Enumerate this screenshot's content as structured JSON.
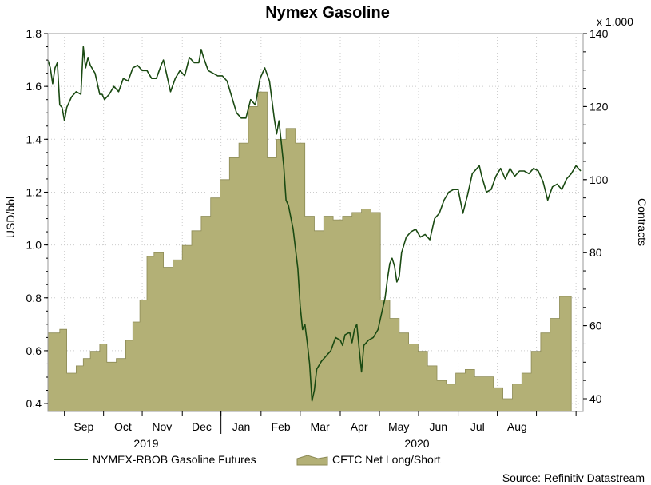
{
  "chart_data": {
    "type": "area-line-combo",
    "title": "Nymex Gasoline",
    "x_labels": [
      "Sep",
      "Oct",
      "Nov",
      "Dec",
      "Jan",
      "Feb",
      "Mar",
      "Apr",
      "May",
      "Jun",
      "Jul",
      "Aug"
    ],
    "year_labels": [
      "2019",
      "2020"
    ],
    "left_axis": {
      "label": "USD/bbl",
      "range": [
        0.37,
        1.8
      ],
      "ticks": [
        "1.8",
        "1.6",
        "1.4",
        "1.2",
        "1.0",
        "0.8",
        "0.6",
        "0.4"
      ]
    },
    "right_axis": {
      "label": "Contracts",
      "multiplier_label": "x 1,000",
      "range": [
        36.5,
        140
      ],
      "ticks": [
        "140",
        "120",
        "100",
        "80",
        "60",
        "40"
      ]
    },
    "grid": true,
    "legend": "bottom",
    "series": [
      {
        "name": "NYMEX-RBOB Gasoline Futures",
        "axis": "left",
        "kind": "line",
        "color": "#1a4a12",
        "points": [
          [
            2019.63,
            1.7
          ],
          [
            2019.635,
            1.67
          ],
          [
            2019.64,
            1.61
          ],
          [
            2019.645,
            1.67
          ],
          [
            2019.65,
            1.69
          ],
          [
            2019.655,
            1.53
          ],
          [
            2019.66,
            1.52
          ],
          [
            2019.665,
            1.47
          ],
          [
            2019.67,
            1.52
          ],
          [
            2019.68,
            1.56
          ],
          [
            2019.69,
            1.58
          ],
          [
            2019.7,
            1.57
          ],
          [
            2019.705,
            1.75
          ],
          [
            2019.71,
            1.67
          ],
          [
            2019.715,
            1.71
          ],
          [
            2019.72,
            1.68
          ],
          [
            2019.73,
            1.65
          ],
          [
            2019.735,
            1.61
          ],
          [
            2019.74,
            1.57
          ],
          [
            2019.745,
            1.57
          ],
          [
            2019.75,
            1.55
          ],
          [
            2019.76,
            1.57
          ],
          [
            2019.77,
            1.6
          ],
          [
            2019.78,
            1.58
          ],
          [
            2019.79,
            1.63
          ],
          [
            2019.8,
            1.62
          ],
          [
            2019.81,
            1.67
          ],
          [
            2019.82,
            1.68
          ],
          [
            2019.83,
            1.66
          ],
          [
            2019.84,
            1.66
          ],
          [
            2019.85,
            1.63
          ],
          [
            2019.86,
            1.63
          ],
          [
            2019.87,
            1.68
          ],
          [
            2019.875,
            1.7
          ],
          [
            2019.88,
            1.66
          ],
          [
            2019.89,
            1.58
          ],
          [
            2019.9,
            1.63
          ],
          [
            2019.91,
            1.66
          ],
          [
            2019.92,
            1.64
          ],
          [
            2019.93,
            1.71
          ],
          [
            2019.94,
            1.69
          ],
          [
            2019.95,
            1.69
          ],
          [
            2019.955,
            1.74
          ],
          [
            2019.96,
            1.71
          ],
          [
            2019.97,
            1.66
          ],
          [
            2019.98,
            1.65
          ],
          [
            2019.99,
            1.64
          ],
          [
            2020.0,
            1.64
          ],
          [
            2020.01,
            1.62
          ],
          [
            2020.02,
            1.56
          ],
          [
            2020.03,
            1.5
          ],
          [
            2020.04,
            1.48
          ],
          [
            2020.05,
            1.48
          ],
          [
            2020.06,
            1.55
          ],
          [
            2020.07,
            1.53
          ],
          [
            2020.08,
            1.63
          ],
          [
            2020.09,
            1.67
          ],
          [
            2020.1,
            1.62
          ],
          [
            2020.11,
            1.48
          ],
          [
            2020.115,
            1.42
          ],
          [
            2020.12,
            1.47
          ],
          [
            2020.13,
            1.3
          ],
          [
            2020.135,
            1.17
          ],
          [
            2020.14,
            1.15
          ],
          [
            2020.15,
            1.06
          ],
          [
            2020.16,
            0.91
          ],
          [
            2020.165,
            0.77
          ],
          [
            2020.17,
            0.68
          ],
          [
            2020.175,
            0.7
          ],
          [
            2020.18,
            0.63
          ],
          [
            2020.185,
            0.55
          ],
          [
            2020.19,
            0.41
          ],
          [
            2020.195,
            0.45
          ],
          [
            2020.2,
            0.53
          ],
          [
            2020.21,
            0.56
          ],
          [
            2020.22,
            0.58
          ],
          [
            2020.225,
            0.59
          ],
          [
            2020.23,
            0.6
          ],
          [
            2020.24,
            0.65
          ],
          [
            2020.25,
            0.64
          ],
          [
            2020.255,
            0.62
          ],
          [
            2020.26,
            0.66
          ],
          [
            2020.27,
            0.67
          ],
          [
            2020.275,
            0.63
          ],
          [
            2020.28,
            0.68
          ],
          [
            2020.285,
            0.7
          ],
          [
            2020.29,
            0.61
          ],
          [
            2020.295,
            0.52
          ],
          [
            2020.3,
            0.62
          ],
          [
            2020.31,
            0.64
          ],
          [
            2020.32,
            0.65
          ],
          [
            2020.33,
            0.68
          ],
          [
            2020.34,
            0.76
          ],
          [
            2020.345,
            0.8
          ],
          [
            2020.35,
            0.87
          ],
          [
            2020.355,
            0.93
          ],
          [
            2020.36,
            0.95
          ],
          [
            2020.365,
            0.92
          ],
          [
            2020.37,
            0.86
          ],
          [
            2020.375,
            0.88
          ],
          [
            2020.38,
            0.97
          ],
          [
            2020.39,
            1.03
          ],
          [
            2020.4,
            1.05
          ],
          [
            2020.41,
            1.06
          ],
          [
            2020.42,
            1.03
          ],
          [
            2020.43,
            1.04
          ],
          [
            2020.44,
            1.02
          ],
          [
            2020.45,
            1.1
          ],
          [
            2020.46,
            1.12
          ],
          [
            2020.47,
            1.17
          ],
          [
            2020.48,
            1.2
          ],
          [
            2020.49,
            1.21
          ],
          [
            2020.5,
            1.21
          ],
          [
            2020.51,
            1.12
          ],
          [
            2020.52,
            1.19
          ],
          [
            2020.53,
            1.27
          ],
          [
            2020.54,
            1.29
          ],
          [
            2020.545,
            1.3
          ],
          [
            2020.55,
            1.26
          ],
          [
            2020.56,
            1.2
          ],
          [
            2020.57,
            1.21
          ],
          [
            2020.58,
            1.26
          ],
          [
            2020.59,
            1.29
          ],
          [
            2020.6,
            1.25
          ],
          [
            2020.61,
            1.29
          ],
          [
            2020.62,
            1.26
          ],
          [
            2020.63,
            1.28
          ],
          [
            2020.64,
            1.28
          ],
          [
            2020.65,
            1.27
          ],
          [
            2020.66,
            1.29
          ],
          [
            2020.67,
            1.28
          ],
          [
            2020.68,
            1.24
          ],
          [
            2020.69,
            1.17
          ],
          [
            2020.7,
            1.22
          ],
          [
            2020.71,
            1.23
          ],
          [
            2020.72,
            1.21
          ],
          [
            2020.73,
            1.25
          ],
          [
            2020.74,
            1.27
          ],
          [
            2020.75,
            1.3
          ],
          [
            2020.76,
            1.28
          ]
        ]
      },
      {
        "name": "CFTC Net Long/Short",
        "axis": "right",
        "kind": "stepped-area",
        "color": "#b3b076",
        "points": [
          [
            2019.63,
            58
          ],
          [
            2019.655,
            59
          ],
          [
            2019.67,
            47
          ],
          [
            2019.69,
            49
          ],
          [
            2019.705,
            51
          ],
          [
            2019.72,
            53
          ],
          [
            2019.74,
            55
          ],
          [
            2019.755,
            50
          ],
          [
            2019.775,
            51
          ],
          [
            2019.795,
            56
          ],
          [
            2019.81,
            61
          ],
          [
            2019.825,
            67
          ],
          [
            2019.84,
            79
          ],
          [
            2019.855,
            80
          ],
          [
            2019.875,
            76
          ],
          [
            2019.895,
            78
          ],
          [
            2019.915,
            82
          ],
          [
            2019.935,
            86
          ],
          [
            2019.955,
            90
          ],
          [
            2019.975,
            95
          ],
          [
            2019.995,
            100
          ],
          [
            2020.015,
            106
          ],
          [
            2020.035,
            110
          ],
          [
            2020.055,
            120
          ],
          [
            2020.075,
            124
          ],
          [
            2020.095,
            106
          ],
          [
            2020.115,
            111
          ],
          [
            2020.135,
            114
          ],
          [
            2020.155,
            110
          ],
          [
            2020.175,
            90
          ],
          [
            2020.195,
            86
          ],
          [
            2020.215,
            90
          ],
          [
            2020.235,
            89
          ],
          [
            2020.255,
            90
          ],
          [
            2020.275,
            91
          ],
          [
            2020.295,
            92
          ],
          [
            2020.315,
            91
          ],
          [
            2020.335,
            67
          ],
          [
            2020.355,
            62
          ],
          [
            2020.375,
            58
          ],
          [
            2020.395,
            55
          ],
          [
            2020.415,
            53
          ],
          [
            2020.435,
            49
          ],
          [
            2020.455,
            45
          ],
          [
            2020.475,
            44
          ],
          [
            2020.495,
            47
          ],
          [
            2020.515,
            48
          ],
          [
            2020.535,
            46
          ],
          [
            2020.555,
            46
          ],
          [
            2020.575,
            43
          ],
          [
            2020.595,
            40
          ],
          [
            2020.615,
            44
          ],
          [
            2020.635,
            47
          ],
          [
            2020.655,
            53
          ],
          [
            2020.675,
            58
          ],
          [
            2020.695,
            62
          ],
          [
            2020.715,
            68
          ],
          [
            2020.735,
            68
          ]
        ]
      }
    ],
    "source": "Source: Refinitiv Datastream"
  },
  "colors": {
    "line": "#1a4a12",
    "area_fill": "#b3b076",
    "area_stroke": "#8c8a55",
    "grid": "#cccccc"
  }
}
